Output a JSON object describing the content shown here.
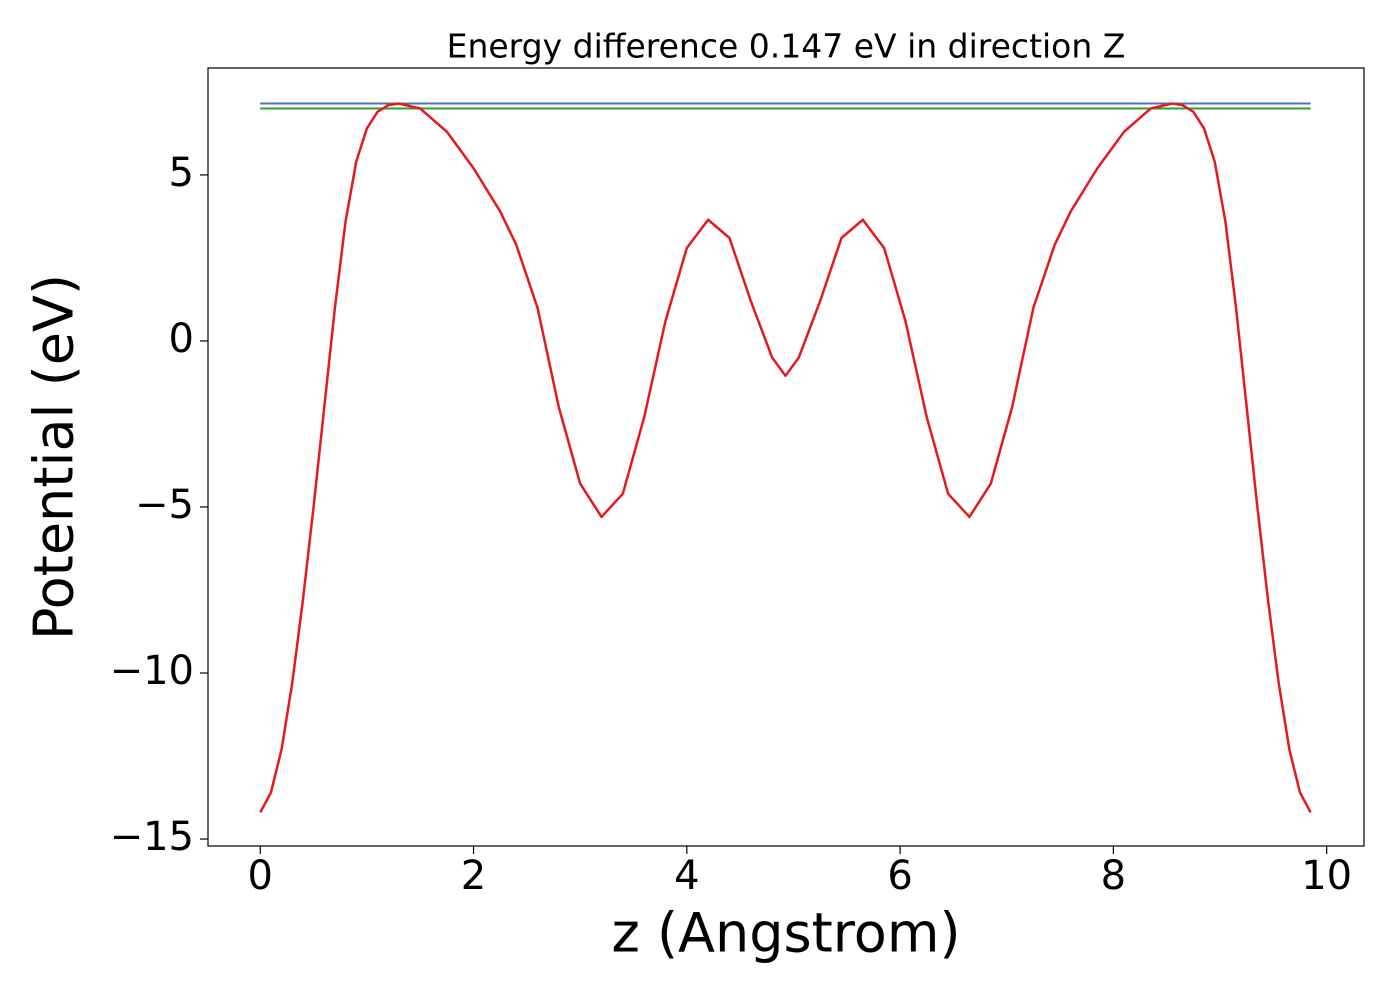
{
  "chart_data": {
    "type": "line",
    "title": "Energy difference 0.147 eV in direction Z",
    "xlabel": "z (Angstrom)",
    "ylabel": "Potential (eV)",
    "xlim": [
      -0.49,
      10.35
    ],
    "ylim": [
      -15.21,
      8.22
    ],
    "xticks": [
      0,
      2,
      4,
      6,
      8,
      10
    ],
    "yticks": [
      {
        "value": -15,
        "label": "−15"
      },
      {
        "value": -10,
        "label": "−10"
      },
      {
        "value": -5,
        "label": "−5"
      },
      0,
      5
    ],
    "grid": false,
    "series": [
      {
        "color": "#e41a1c",
        "x": [
          0,
          0.1,
          0.2,
          0.3,
          0.4,
          0.5,
          0.6,
          0.7,
          0.8,
          0.9,
          1.0,
          1.1,
          1.2,
          1.3,
          1.5,
          1.75,
          2.0,
          2.25,
          2.4,
          2.6,
          2.8,
          3.0,
          3.2,
          3.4,
          3.6,
          3.8,
          4.0,
          4.2,
          4.4,
          4.6,
          4.8,
          4.925,
          5.05,
          5.25,
          5.45,
          5.65,
          5.85,
          6.05,
          6.25,
          6.45,
          6.65,
          6.85,
          7.05,
          7.25,
          7.45,
          7.6,
          7.85,
          8.1,
          8.35,
          8.55,
          8.65,
          8.75,
          8.85,
          8.95,
          9.05,
          9.15,
          9.25,
          9.35,
          9.45,
          9.55,
          9.65,
          9.75,
          9.85
        ],
        "values": [
          -14.2,
          -13.6,
          -12.3,
          -10.3,
          -7.8,
          -5.0,
          -2.0,
          1.0,
          3.6,
          5.4,
          6.4,
          6.9,
          7.1,
          7.15,
          7.0,
          6.3,
          5.2,
          3.9,
          2.9,
          1.0,
          -2.0,
          -4.3,
          -5.3,
          -4.6,
          -2.3,
          0.6,
          2.8,
          3.65,
          3.1,
          1.2,
          -0.5,
          -1.05,
          -0.5,
          1.2,
          3.1,
          3.65,
          2.8,
          0.6,
          -2.3,
          -4.6,
          -5.3,
          -4.3,
          -2.0,
          1.0,
          2.9,
          3.9,
          5.2,
          6.3,
          7.0,
          7.15,
          7.1,
          6.9,
          6.4,
          5.4,
          3.6,
          1.0,
          -2.0,
          -5.0,
          -7.8,
          -10.3,
          -12.3,
          -13.6,
          -14.2
        ]
      },
      {
        "color": "#4c72b0",
        "x": [
          0,
          9.85
        ],
        "values": [
          7.15,
          7.15
        ]
      },
      {
        "color": "#2ca02c",
        "x": [
          0,
          9.85
        ],
        "values": [
          7.0,
          7.0
        ]
      }
    ]
  }
}
